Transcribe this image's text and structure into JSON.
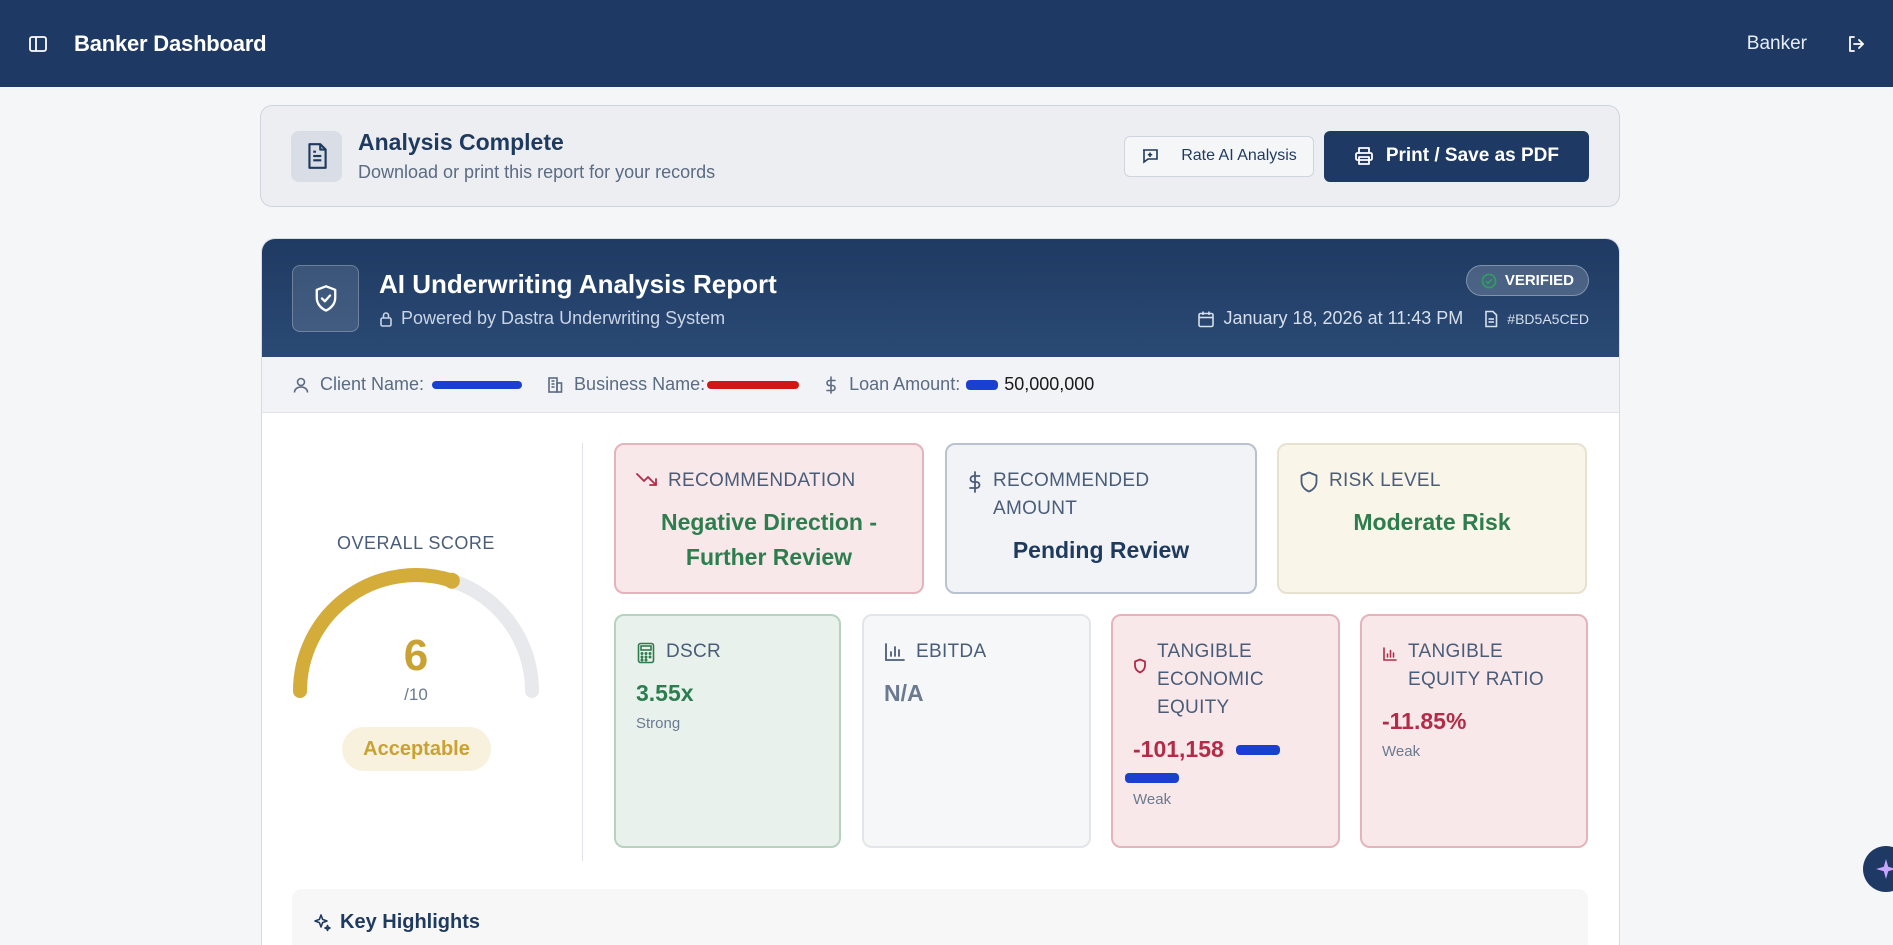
{
  "topbar": {
    "title": "Banker Dashboard",
    "user": "Banker"
  },
  "actions": {
    "heading": "Analysis Complete",
    "subheading": "Download or print this report for your records",
    "rate_label": "Rate AI Analysis",
    "print_label": "Print / Save as PDF"
  },
  "report": {
    "title": "AI Underwriting Analysis Report",
    "powered_by": "Powered by Dastra Underwriting System",
    "verified": "VERIFIED",
    "date": "January 18, 2026 at 11:43 PM",
    "report_id": "#BD5A5CED"
  },
  "client": {
    "client_label": "Client Name:",
    "business_label": "Business Name:",
    "loan_label": "Loan Amount:",
    "loan_value": "50,000,000"
  },
  "score": {
    "label": "OVERALL SCORE",
    "value": "6",
    "max": "/10",
    "fraction": 0.6,
    "rating": "Acceptable",
    "color": "#c9a233"
  },
  "cards": {
    "recommendation": {
      "label": "RECOMMENDATION",
      "value": "Negative Direction - Further Review"
    },
    "recommended_amount": {
      "label": "RECOMMENDED AMOUNT",
      "value": "Pending Review"
    },
    "risk_level": {
      "label": "RISK LEVEL",
      "value": "Moderate Risk"
    }
  },
  "metrics": {
    "dscr": {
      "label": "DSCR",
      "value": "3.55x",
      "status": "Strong"
    },
    "ebitda": {
      "label": "EBITDA",
      "value": "N/A"
    },
    "tee": {
      "label": "TANGIBLE ECONOMIC EQUITY",
      "value": "-101,158",
      "status": "Weak"
    },
    "ter": {
      "label": "TANGIBLE EQUITY RATIO",
      "value": "-11.85%",
      "status": "Weak"
    }
  },
  "highlights": {
    "title": "Key Highlights"
  },
  "colors": {
    "navy": "#1e3a64",
    "green": "#2e7d4f",
    "red": "#b42b48",
    "gold": "#c9a233"
  }
}
